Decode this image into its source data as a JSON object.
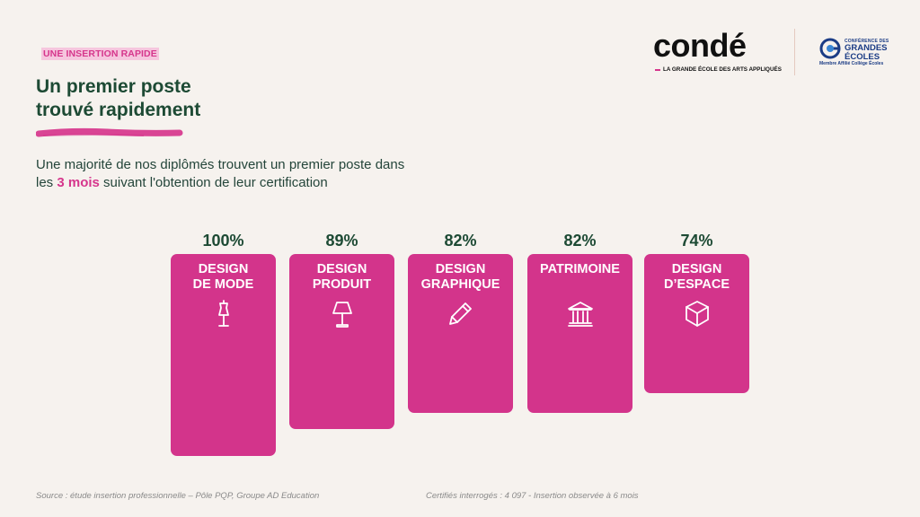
{
  "header": {
    "tag": "UNE INSERTION RAPIDE",
    "title_lines": [
      "Un premier poste",
      "trouvé rapidement"
    ],
    "intro_part1": "Une majorité de nos diplômés trouvent un premier poste dans les ",
    "intro_highlight": "3 mois",
    "intro_part2": " suivant l'obtention de leur certification"
  },
  "logos": {
    "conde_word": "condé",
    "conde_tagline": "LA GRANDE ÉCOLE DES ARTS APPLIQUÉS",
    "cge_line1": "CONFÉRENCE DES",
    "cge_line2": "GRANDES",
    "cge_line3": "ÉCOLES",
    "cge_line4": "Membre Affilié Collège Écoles"
  },
  "colors": {
    "accent": "#d3348b",
    "text_green": "#1d4a34",
    "background": "#f6f2ee"
  },
  "chart_data": {
    "type": "bar",
    "categories": [
      "DESIGN DE MODE",
      "DESIGN PRODUIT",
      "DESIGN GRAPHIQUE",
      "PATRIMOINE",
      "DESIGN D'ESPACE"
    ],
    "category_display": [
      "DESIGN\nDE MODE",
      "DESIGN\nPRODUIT",
      "DESIGN\nGRAPHIQUE",
      "PATRIMOINE",
      "DESIGN\nD’ESPACE"
    ],
    "values": [
      100,
      89,
      82,
      82,
      74
    ],
    "value_labels": [
      "100%",
      "89%",
      "82%",
      "82%",
      "74%"
    ],
    "icons": [
      "dress-form-icon",
      "lamp-icon",
      "pencil-icon",
      "museum-icon",
      "cube-icon"
    ],
    "ylim": [
      0,
      100
    ]
  },
  "footer": {
    "source": "Source : étude insertion professionnelle – Pôle PQP, Groupe AD Education",
    "note": "Certifiés interrogés : 4 097 - Insertion observée à 6 mois"
  }
}
